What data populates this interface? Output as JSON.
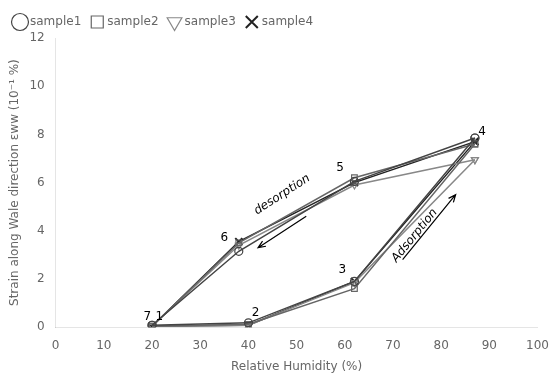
{
  "chart_data": {
    "type": "line",
    "xlabel": "Relative Humidity (%)",
    "ylabel": "Strain along Wale direction εww (10⁻¹ %)",
    "xlim": [
      0,
      100
    ],
    "ylim": [
      0,
      12
    ],
    "xticks": [
      0,
      10,
      20,
      30,
      40,
      50,
      60,
      70,
      80,
      90,
      100
    ],
    "yticks": [
      0,
      2,
      4,
      6,
      8,
      10,
      12
    ],
    "grid": false,
    "legend": "upper left",
    "series": [
      {
        "name": "sample1",
        "color": "#444444",
        "marker": "circle",
        "adsorption": {
          "x": [
            20,
            40,
            62,
            87
          ],
          "values": [
            0.08,
            0.18,
            1.9,
            7.85
          ]
        },
        "desorption": {
          "x": [
            87,
            62,
            38,
            20
          ],
          "values": [
            7.85,
            6.05,
            3.15,
            0.08
          ]
        }
      },
      {
        "name": "sample2",
        "color": "#666666",
        "marker": "square",
        "adsorption": {
          "x": [
            20,
            40,
            62,
            87
          ],
          "values": [
            0.04,
            0.12,
            1.6,
            7.6
          ]
        },
        "desorption": {
          "x": [
            87,
            62,
            38,
            20
          ],
          "values": [
            7.6,
            6.2,
            3.5,
            0.04
          ]
        }
      },
      {
        "name": "sample3",
        "color": "#888888",
        "marker": "triangle_down",
        "adsorption": {
          "x": [
            20,
            40,
            62,
            87
          ],
          "values": [
            0.04,
            0.08,
            1.85,
            6.95
          ]
        },
        "desorption": {
          "x": [
            87,
            62,
            38,
            20
          ],
          "values": [
            6.95,
            5.9,
            3.4,
            0.04
          ]
        }
      },
      {
        "name": "sample4",
        "color": "#222222",
        "marker": "x",
        "adsorption": {
          "x": [
            20,
            40,
            62,
            87
          ],
          "values": [
            0.04,
            0.08,
            1.9,
            7.7
          ]
        },
        "desorption": {
          "x": [
            87,
            62,
            38,
            20
          ],
          "values": [
            7.7,
            6.0,
            3.55,
            0.04
          ]
        }
      }
    ],
    "annotations": [
      {
        "text": "7",
        "x": 19.0,
        "y": 0.18
      },
      {
        "text": "1",
        "x": 21.5,
        "y": 0.18
      },
      {
        "text": "2",
        "x": 41.5,
        "y": 0.35
      },
      {
        "text": "6",
        "x": 35.0,
        "y": 3.45
      },
      {
        "text": "5",
        "x": 59.0,
        "y": 6.35
      },
      {
        "text": "3",
        "x": 59.5,
        "y": 2.15
      },
      {
        "text": "4",
        "x": 88.5,
        "y": 7.85
      },
      {
        "text": "desorption",
        "x": 47.0,
        "y": 5.5,
        "arrow_from": [
          52.0,
          4.6
        ],
        "arrow_to": [
          42.0,
          3.3
        ]
      },
      {
        "text": "Adsorption",
        "x": 74.5,
        "y": 3.8,
        "arrow_from": [
          72.0,
          2.8
        ],
        "arrow_to": [
          83.0,
          5.5
        ]
      }
    ]
  }
}
